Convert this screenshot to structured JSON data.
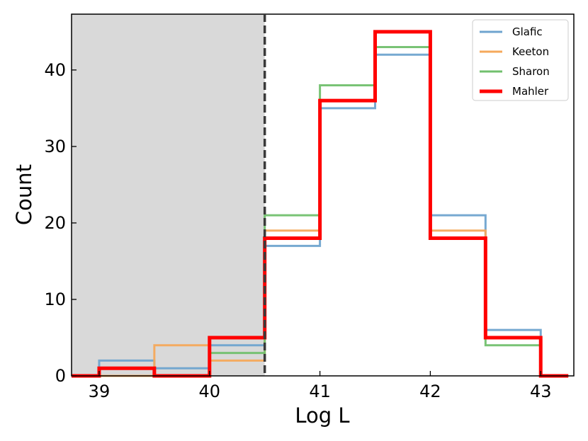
{
  "chart_data": {
    "type": "histogram-step",
    "xlabel": "Log L",
    "ylabel": "Count",
    "xlim": [
      38.75,
      43.3
    ],
    "ylim": [
      0,
      47.3
    ],
    "xticks": [
      39,
      40,
      41,
      42,
      43
    ],
    "yticks": [
      0,
      10,
      20,
      30,
      40
    ],
    "bin_edges": [
      39.0,
      39.5,
      40.0,
      40.5,
      41.0,
      41.5,
      42.0,
      42.5,
      43.0
    ],
    "shaded_region": [
      38.75,
      40.5
    ],
    "shaded_color": "#d9d9d9",
    "threshold_x": 40.5,
    "legend_position": "upper right",
    "grid": false,
    "series": [
      {
        "name": "Glafic",
        "color": "#6fa4cf",
        "values": [
          2,
          1,
          4,
          17,
          35,
          42,
          21,
          6
        ]
      },
      {
        "name": "Keeton",
        "color": "#f5a95b",
        "values": [
          0,
          4,
          2,
          19,
          36,
          45,
          19,
          5
        ]
      },
      {
        "name": "Sharon",
        "color": "#72c06e",
        "values": [
          1,
          0,
          3,
          21,
          38,
          43,
          18,
          4
        ]
      },
      {
        "name": "Mahler",
        "color": "#ff0000",
        "values": [
          1,
          0,
          5,
          18,
          36,
          45,
          18,
          5
        ]
      }
    ]
  }
}
